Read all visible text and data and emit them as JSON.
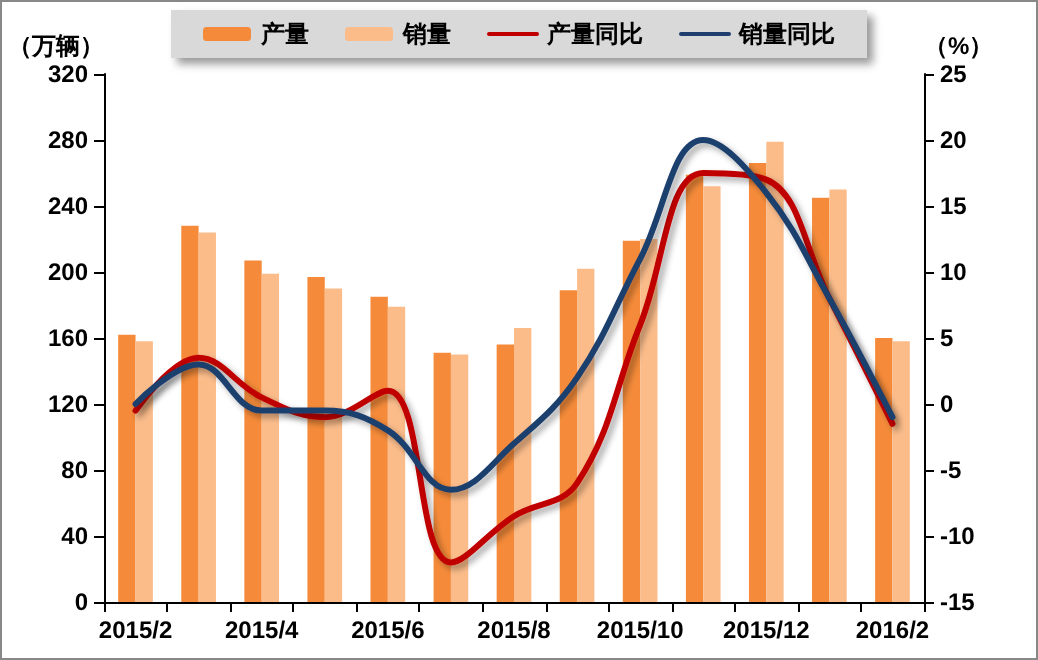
{
  "chart_data": {
    "type": "bar",
    "categories": [
      "2015/2",
      null,
      "2015/4",
      null,
      "2015/6",
      null,
      "2015/8",
      null,
      "2015/10",
      null,
      "2015/12",
      null,
      "2016/2"
    ],
    "ylabel": "（万辆）",
    "y2label": "（%）",
    "ylim": [
      0,
      320
    ],
    "yticks": [
      0,
      40,
      80,
      120,
      160,
      200,
      240,
      280,
      320
    ],
    "y2lim": [
      -15,
      25
    ],
    "y2ticks": [
      -15,
      -10,
      -5,
      0,
      5,
      10,
      15,
      20,
      25
    ],
    "grid": false,
    "legend": "top",
    "marker": "none",
    "line_style": "solid",
    "series": [
      {
        "name": "产量",
        "color": "#f58b3a",
        "values": [
          162,
          228,
          207,
          197,
          185,
          151,
          156,
          189,
          219,
          259,
          266,
          245,
          160
        ]
      },
      {
        "name": "销量",
        "color": "#fbbc8a",
        "values": [
          158,
          224,
          199,
          190,
          179,
          150,
          166,
          202,
          220,
          252,
          279,
          250,
          158
        ]
      },
      {
        "name": "产量同比",
        "type": "line",
        "axis": "y2",
        "color": "#c00000",
        "values": [
          -0.5,
          3.5,
          0.5,
          -1,
          1,
          -12,
          -8.5,
          -6,
          6,
          17.5,
          17,
          8,
          -1.5
        ]
      },
      {
        "name": "销量同比",
        "type": "line",
        "axis": "y2",
        "color": "#1f3f6e",
        "values": [
          0,
          3,
          -0.5,
          -0.5,
          -2,
          -6.5,
          -3,
          2,
          11,
          20,
          16,
          8,
          -1
        ]
      }
    ]
  }
}
